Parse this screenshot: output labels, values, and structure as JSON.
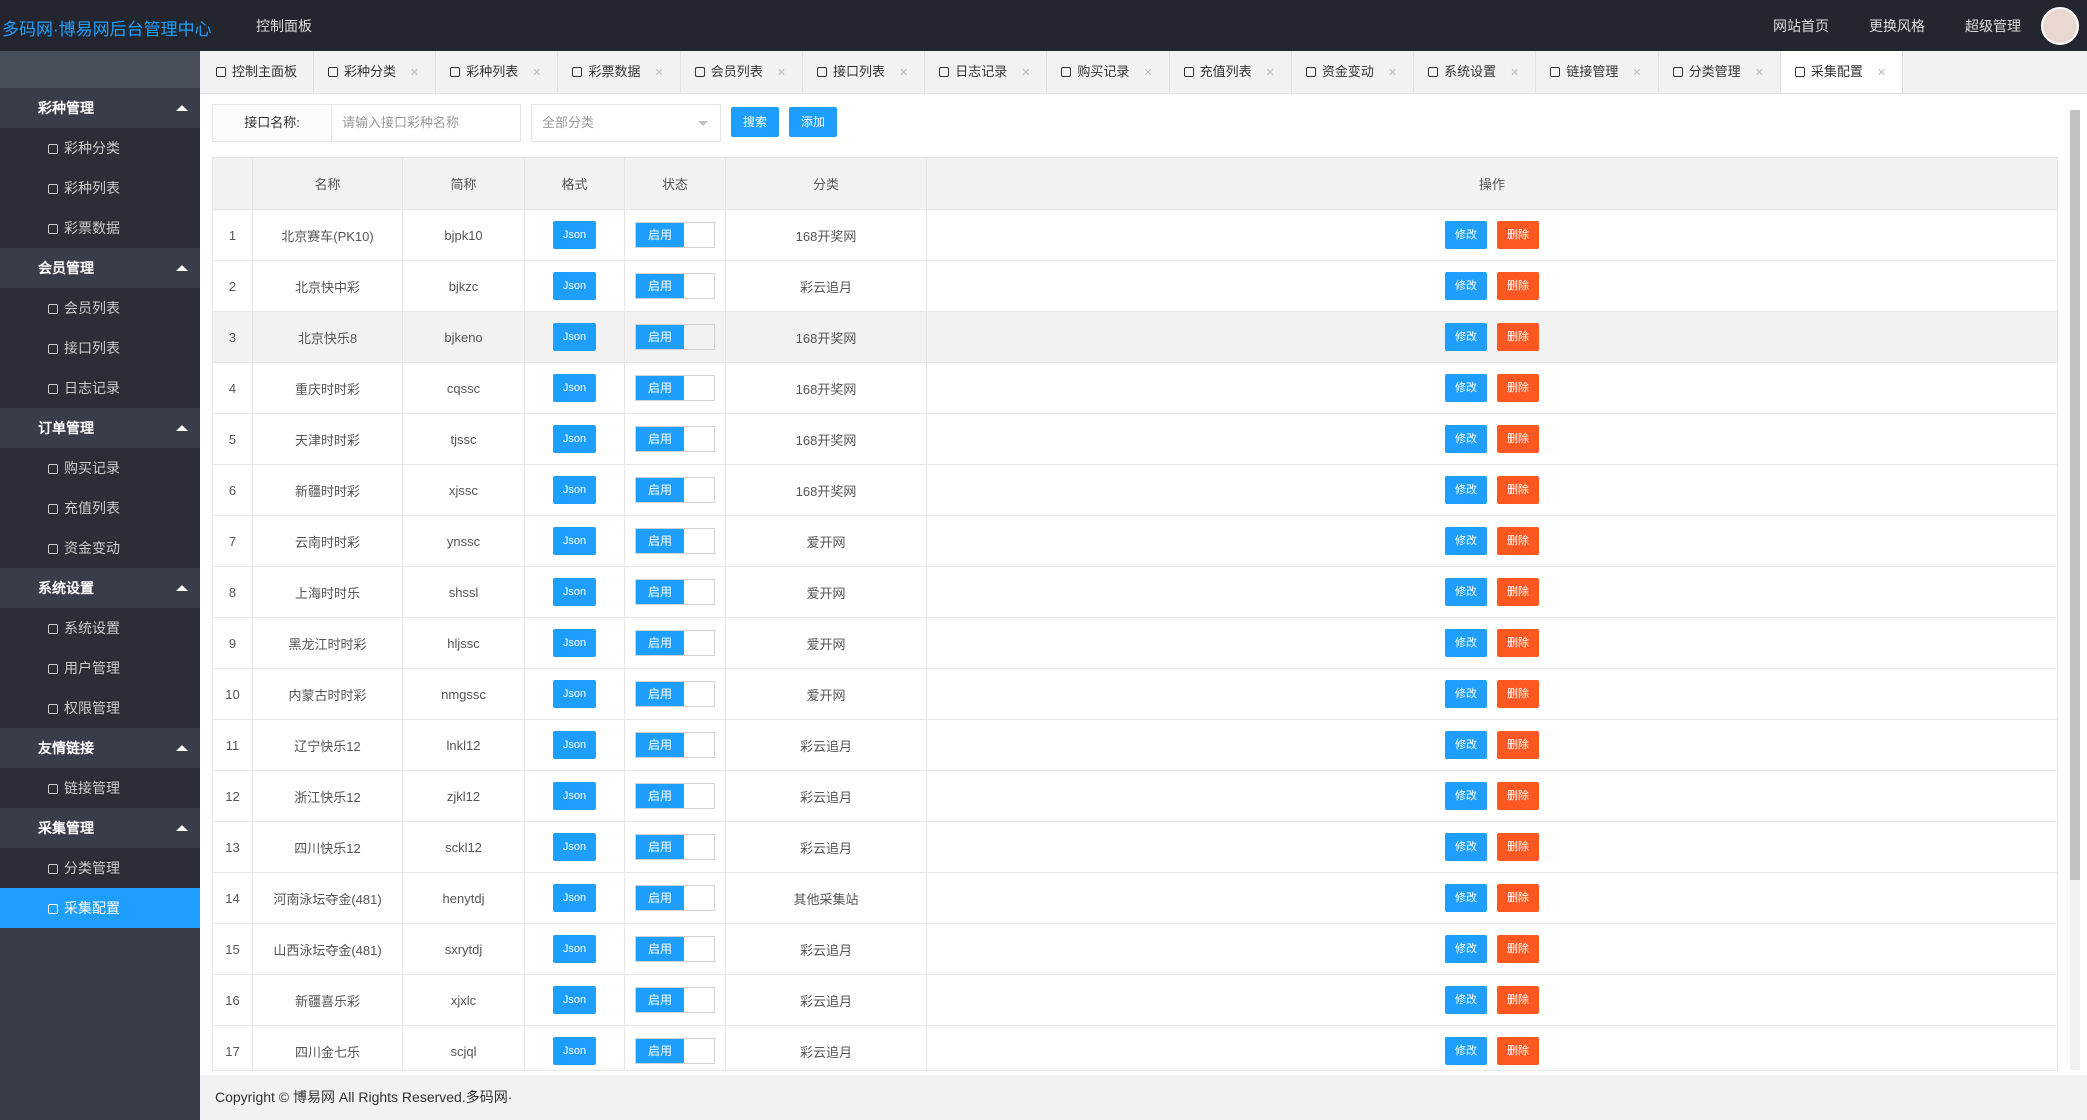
{
  "header": {
    "title": "多码网·博易网后台管理中心",
    "breadcrumb": "控制面板",
    "links": [
      "网站首页",
      "更换风格",
      "超级管理"
    ]
  },
  "sidebar": {
    "groups": [
      {
        "title": "彩种管理",
        "items": [
          "彩种分类",
          "彩种列表",
          "彩票数据"
        ]
      },
      {
        "title": "会员管理",
        "items": [
          "会员列表",
          "接口列表",
          "日志记录"
        ]
      },
      {
        "title": "订单管理",
        "items": [
          "购买记录",
          "充值列表",
          "资金变动"
        ]
      },
      {
        "title": "系统设置",
        "items": [
          "系统设置",
          "用户管理",
          "权限管理"
        ]
      },
      {
        "title": "友情链接",
        "items": [
          "链接管理"
        ]
      },
      {
        "title": "采集管理",
        "items": [
          "分类管理",
          "采集配置"
        ]
      }
    ]
  },
  "tabs": [
    "控制主面板",
    "彩种分类",
    "彩种列表",
    "彩票数据",
    "会员列表",
    "接口列表",
    "日志记录",
    "购买记录",
    "充值列表",
    "资金变动",
    "系统设置",
    "链接管理",
    "分类管理",
    "采集配置"
  ],
  "search": {
    "label": "接口名称:",
    "placeholder": "请输入接口彩种名称",
    "select": "全部分类",
    "search_button": "搜索",
    "add_button": "添加"
  },
  "table": {
    "columns": [
      "名称",
      "简称",
      "格式",
      "状态",
      "分类",
      "操作"
    ],
    "format_label": "Json",
    "status_label": "启用",
    "edit_label": "修改",
    "delete_label": "删除",
    "rows": [
      [
        1,
        "北京赛车(PK10)",
        "bjpk10",
        "168开奖网"
      ],
      [
        2,
        "北京快中彩",
        "bjkzc",
        "彩云追月"
      ],
      [
        3,
        "北京快乐8",
        "bjkeno",
        "168开奖网"
      ],
      [
        4,
        "重庆时时彩",
        "cqssc",
        "168开奖网"
      ],
      [
        5,
        "天津时时彩",
        "tjssc",
        "168开奖网"
      ],
      [
        6,
        "新疆时时彩",
        "xjssc",
        "168开奖网"
      ],
      [
        7,
        "云南时时彩",
        "ynssc",
        "爱开网"
      ],
      [
        8,
        "上海时时乐",
        "shssl",
        "爱开网"
      ],
      [
        9,
        "黑龙江时时彩",
        "hljssc",
        "爱开网"
      ],
      [
        10,
        "内蒙古时时彩",
        "nmgssc",
        "爱开网"
      ],
      [
        11,
        "辽宁快乐12",
        "lnkl12",
        "彩云追月"
      ],
      [
        12,
        "浙江快乐12",
        "zjkl12",
        "彩云追月"
      ],
      [
        13,
        "四川快乐12",
        "sckl12",
        "彩云追月"
      ],
      [
        14,
        "河南泳坛夺金(481)",
        "henytdj",
        "其他采集站"
      ],
      [
        15,
        "山西泳坛夺金(481)",
        "sxrytdj",
        "彩云追月"
      ],
      [
        16,
        "新疆喜乐彩",
        "xjxlc",
        "彩云追月"
      ],
      [
        17,
        "四川金七乐",
        "scjql",
        "彩云追月"
      ]
    ]
  },
  "footer": "Copyright © 博易网 All Rights Reserved.多码网·"
}
